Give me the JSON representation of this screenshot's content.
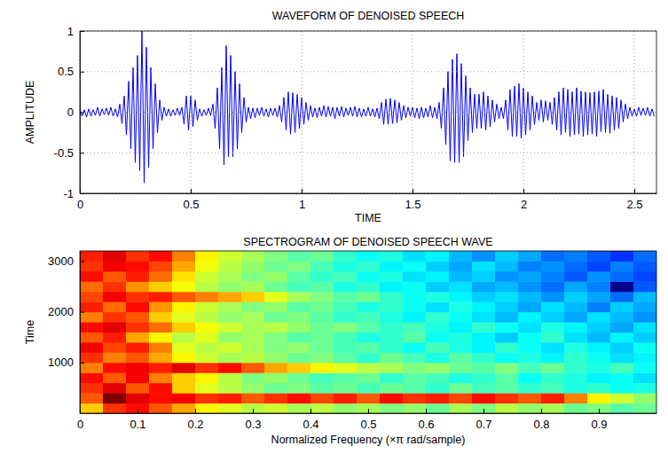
{
  "chart_data": [
    {
      "type": "line",
      "title": "WAVEFORM OF DENOISED SPEECH",
      "x_label": "TIME",
      "y_label": "AMPLITUDE",
      "x": [
        0,
        0.01,
        0.02,
        0.03,
        0.04,
        0.05,
        0.06,
        0.07,
        0.08,
        0.09,
        0.1,
        0.11,
        0.12,
        0.13,
        0.14,
        0.15,
        0.16,
        0.17,
        0.18,
        0.19,
        0.2,
        0.21,
        0.22,
        0.23,
        0.24,
        0.25,
        0.26,
        0.27,
        0.28,
        0.29,
        0.3,
        0.31,
        0.32,
        0.33,
        0.34,
        0.35,
        0.36,
        0.37,
        0.38,
        0.39,
        0.4,
        0.41,
        0.42,
        0.43,
        0.44,
        0.45,
        0.46,
        0.47,
        0.48,
        0.49,
        0.5,
        0.51,
        0.52,
        0.53,
        0.54,
        0.55,
        0.56,
        0.57,
        0.58,
        0.59,
        0.6,
        0.61,
        0.62,
        0.63,
        0.64,
        0.65,
        0.66,
        0.67,
        0.68,
        0.69,
        0.7,
        0.71,
        0.72,
        0.73,
        0.74,
        0.75,
        0.76,
        0.77,
        0.78,
        0.79,
        0.8,
        0.81,
        0.82,
        0.83,
        0.84,
        0.85,
        0.86,
        0.87,
        0.88,
        0.89,
        0.9,
        0.91,
        0.92,
        0.93,
        0.94,
        0.95,
        0.96,
        0.97,
        0.98,
        0.99,
        1,
        1.01,
        1.02,
        1.03,
        1.04,
        1.05,
        1.06,
        1.07,
        1.08,
        1.09,
        1.1,
        1.11,
        1.12,
        1.13,
        1.14,
        1.15,
        1.16,
        1.17,
        1.18,
        1.19,
        1.2,
        1.21,
        1.22,
        1.23,
        1.24,
        1.25,
        1.26,
        1.27,
        1.28,
        1.29,
        1.3,
        1.31,
        1.32,
        1.33,
        1.34,
        1.35,
        1.36,
        1.37,
        1.38,
        1.39,
        1.4,
        1.41,
        1.42,
        1.43,
        1.44,
        1.45,
        1.46,
        1.47,
        1.48,
        1.49,
        1.5,
        1.51,
        1.52,
        1.53,
        1.54,
        1.55,
        1.56,
        1.57,
        1.58,
        1.59,
        1.6,
        1.61,
        1.62,
        1.63,
        1.64,
        1.65,
        1.66,
        1.67,
        1.68,
        1.69,
        1.7,
        1.71,
        1.72,
        1.73,
        1.74,
        1.75,
        1.76,
        1.77,
        1.78,
        1.79,
        1.8,
        1.81,
        1.82,
        1.83,
        1.84,
        1.85,
        1.86,
        1.87,
        1.88,
        1.89,
        1.9,
        1.91,
        1.92,
        1.93,
        1.94,
        1.95,
        1.96,
        1.97,
        1.98,
        1.99,
        2,
        2.01,
        2.02,
        2.03,
        2.04,
        2.05,
        2.06,
        2.07,
        2.08,
        2.09,
        2.1,
        2.11,
        2.12,
        2.13,
        2.14,
        2.15,
        2.16,
        2.17,
        2.18,
        2.19,
        2.2,
        2.21,
        2.22,
        2.23,
        2.24,
        2.25,
        2.26,
        2.27,
        2.28,
        2.29,
        2.3,
        2.31,
        2.32,
        2.33,
        2.34,
        2.35,
        2.36,
        2.37,
        2.38,
        2.39,
        2.4,
        2.41,
        2.42,
        2.43,
        2.44,
        2.45,
        2.46,
        2.47,
        2.48,
        2.49,
        2.5,
        2.51,
        2.52,
        2.53,
        2.54,
        2.55,
        2.56,
        2.57,
        2.58,
        2.59
      ],
      "series": [
        {
          "color": "#0000ff",
          "values": [
            0.04,
            -0.05,
            0.03,
            -0.06,
            0.04,
            -0.05,
            0.03,
            -0.04,
            0.06,
            -0.05,
            0.04,
            -0.03,
            0.05,
            -0.04,
            0.06,
            -0.05,
            0.04,
            -0.06,
            0.1,
            -0.14,
            0.2,
            -0.28,
            0.38,
            -0.45,
            0.55,
            -0.62,
            0.7,
            -0.72,
            1,
            -0.87,
            0.8,
            -0.68,
            0.55,
            -0.45,
            0.35,
            -0.25,
            0.15,
            -0.1,
            0.06,
            -0.05,
            0.04,
            -0.05,
            0.03,
            -0.04,
            0.05,
            -0.04,
            0.06,
            -0.15,
            0.2,
            -0.22,
            0.2,
            -0.18,
            0.15,
            -0.1,
            0.04,
            -0.05,
            0.03,
            -0.04,
            0.05,
            -0.04,
            0.1,
            -0.2,
            0.3,
            -0.45,
            0.55,
            -0.65,
            0.82,
            -0.55,
            0.7,
            -0.55,
            0.5,
            -0.45,
            0.35,
            -0.25,
            0.18,
            -0.12,
            0.06,
            -0.08,
            0.05,
            -0.07,
            0.05,
            -0.04,
            0.06,
            -0.05,
            0.04,
            -0.06,
            0.05,
            -0.04,
            0.05,
            -0.06,
            0.08,
            -0.12,
            0.18,
            -0.22,
            0.25,
            -0.27,
            0.24,
            -0.25,
            0.22,
            -0.2,
            0.18,
            -0.15,
            0.12,
            -0.1,
            0.08,
            -0.06,
            0.05,
            -0.07,
            0.06,
            -0.05,
            0.08,
            -0.06,
            0.07,
            -0.05,
            0.06,
            -0.08,
            0.06,
            -0.05,
            0.07,
            -0.06,
            0.05,
            -0.04,
            0.06,
            -0.05,
            0.07,
            -0.06,
            0.05,
            -0.06,
            0.04,
            -0.05,
            0.06,
            -0.05,
            0.04,
            -0.06,
            0.05,
            -0.08,
            0.12,
            -0.15,
            0.16,
            -0.15,
            0.17,
            -0.14,
            0.15,
            -0.13,
            0.12,
            -0.1,
            0.08,
            -0.07,
            0.06,
            -0.05,
            0.06,
            -0.07,
            0.05,
            -0.08,
            0.06,
            -0.07,
            0.05,
            -0.06,
            0.08,
            -0.07,
            0.06,
            -0.08,
            0.12,
            -0.2,
            0.3,
            -0.4,
            0.5,
            -0.6,
            0.65,
            -0.62,
            0.72,
            -0.62,
            0.6,
            -0.55,
            0.45,
            -0.35,
            0.3,
            -0.25,
            0.22,
            -0.2,
            0.22,
            -0.2,
            0.25,
            -0.22,
            0.2,
            -0.18,
            0.15,
            -0.12,
            0.1,
            -0.08,
            0.06,
            -0.08,
            0.15,
            -0.22,
            0.28,
            -0.3,
            0.32,
            -0.3,
            0.35,
            -0.32,
            0.3,
            -0.28,
            0.25,
            -0.22,
            0.2,
            -0.15,
            0.12,
            -0.1,
            0.15,
            -0.12,
            0.14,
            -0.1,
            0.12,
            -0.15,
            0.18,
            -0.22,
            0.25,
            -0.28,
            0.3,
            -0.25,
            0.28,
            -0.3,
            0.25,
            -0.28,
            0.3,
            -0.27,
            0.26,
            -0.3,
            0.25,
            -0.28,
            0.24,
            -0.27,
            0.25,
            -0.3,
            0.26,
            -0.24,
            0.28,
            -0.25,
            0.22,
            -0.26,
            0.2,
            -0.22,
            0.18,
            -0.2,
            0.15,
            -0.12,
            0.1,
            -0.08,
            0.06,
            -0.05,
            0.04,
            -0.05,
            0.06,
            -0.04,
            0.05,
            -0.04,
            0.06,
            -0.05,
            0.04,
            -0.05
          ]
        }
      ],
      "xlim": [
        0,
        2.6
      ],
      "xticks": [
        0,
        0.5,
        1,
        1.5,
        2,
        2.5
      ],
      "ylim": [
        -1,
        1
      ],
      "yticks": [
        -1,
        -0.5,
        0,
        0.5,
        1
      ],
      "grid": true
    },
    {
      "type": "heatmap",
      "title": "SPECTROGRAM OF DENOISED SPEECH WAVE",
      "x_label": "Normalized Frequency  (×π rad/sample)",
      "y_label": "Time",
      "x_bins": [
        0,
        0.04,
        0.08,
        0.12,
        0.16,
        0.2,
        0.24,
        0.28,
        0.32,
        0.36,
        0.4,
        0.44,
        0.48,
        0.52,
        0.56,
        0.6,
        0.64,
        0.68,
        0.72,
        0.76,
        0.8,
        0.84,
        0.88,
        0.92,
        0.96,
        1
      ],
      "y_bins": [
        0,
        200,
        400,
        600,
        800,
        1000,
        1200,
        1400,
        1600,
        1800,
        2000,
        2200,
        2400,
        2600,
        2800,
        3000,
        3200
      ],
      "cells": [
        [
          -20,
          -12,
          -10,
          -14,
          -18,
          -22,
          -24,
          -26,
          -25,
          -27,
          -26,
          -28,
          -27,
          -29,
          -28,
          -30,
          -27,
          -29,
          -26,
          -28,
          -27,
          -30,
          -29,
          -31,
          -30
        ],
        [
          -14,
          -3,
          -8,
          -10,
          -9,
          -12,
          -11,
          -14,
          -12,
          -10,
          -13,
          -11,
          -14,
          -10,
          -12,
          -11,
          -13,
          -10,
          -12,
          -14,
          -11,
          -16,
          -22,
          -25,
          -28
        ],
        [
          -12,
          -8,
          -14,
          -10,
          -20,
          -24,
          -26,
          -28,
          -30,
          -29,
          -31,
          -30,
          -32,
          -30,
          -31,
          -33,
          -30,
          -32,
          -31,
          -33,
          -32,
          -34,
          -33,
          -35,
          -34
        ],
        [
          -10,
          -14,
          -9,
          -16,
          -20,
          -22,
          -26,
          -29,
          -28,
          -30,
          -32,
          -31,
          -30,
          -33,
          -31,
          -32,
          -34,
          -33,
          -31,
          -35,
          -33,
          -34,
          -36,
          -35,
          -37
        ],
        [
          -16,
          -10,
          -9,
          -11,
          -8,
          -12,
          -10,
          -14,
          -18,
          -20,
          -22,
          -24,
          -26,
          -27,
          -29,
          -28,
          -30,
          -31,
          -29,
          -32,
          -30,
          -33,
          -34,
          -32,
          -35
        ],
        [
          -12,
          -16,
          -14,
          -18,
          -22,
          -25,
          -27,
          -26,
          -28,
          -30,
          -29,
          -31,
          -33,
          -30,
          -32,
          -34,
          -31,
          -33,
          -35,
          -34,
          -36,
          -33,
          -35,
          -37,
          -36
        ],
        [
          -9,
          -13,
          -11,
          -16,
          -24,
          -26,
          -25,
          -27,
          -29,
          -28,
          -30,
          -32,
          -31,
          -33,
          -35,
          -32,
          -34,
          -36,
          -33,
          -35,
          -37,
          -34,
          -36,
          -38,
          -35
        ],
        [
          -14,
          -11,
          -18,
          -22,
          -26,
          -24,
          -28,
          -27,
          -29,
          -31,
          -30,
          -32,
          -34,
          -33,
          -31,
          -35,
          -34,
          -36,
          -38,
          -35,
          -33,
          -37,
          -39,
          -36,
          -38
        ],
        [
          -10,
          -8,
          -12,
          -15,
          -20,
          -23,
          -25,
          -27,
          -26,
          -28,
          -30,
          -29,
          -31,
          -33,
          -32,
          -34,
          -36,
          -33,
          -35,
          -37,
          -34,
          -36,
          -38,
          -40,
          -37
        ],
        [
          -16,
          -12,
          -14,
          -20,
          -24,
          -26,
          -28,
          -27,
          -30,
          -29,
          -31,
          -33,
          -32,
          -34,
          -36,
          -33,
          -35,
          -37,
          -39,
          -36,
          -38,
          -40,
          -37,
          -39,
          -41
        ],
        [
          -11,
          -15,
          -10,
          -17,
          -22,
          -25,
          -27,
          -29,
          -28,
          -31,
          -30,
          -32,
          -34,
          -33,
          -35,
          -37,
          -34,
          -36,
          -38,
          -40,
          -37,
          -39,
          -42,
          -38,
          -40
        ],
        [
          -13,
          -9,
          -12,
          -11,
          -14,
          -16,
          -18,
          -20,
          -24,
          -27,
          -29,
          -31,
          -30,
          -33,
          -35,
          -34,
          -36,
          -38,
          -37,
          -39,
          -41,
          -38,
          -40,
          -43,
          -39
        ],
        [
          -15,
          -12,
          -17,
          -20,
          -23,
          -26,
          -28,
          -27,
          -30,
          -32,
          -31,
          -34,
          -33,
          -36,
          -35,
          -38,
          -37,
          -40,
          -39,
          -41,
          -43,
          -40,
          -42,
          -55,
          -44
        ],
        [
          -10,
          -14,
          -11,
          -15,
          -21,
          -25,
          -27,
          -29,
          -28,
          -31,
          -33,
          -32,
          -35,
          -34,
          -37,
          -36,
          -39,
          -38,
          -41,
          -40,
          -42,
          -44,
          -41,
          -43,
          -45
        ],
        [
          -12,
          -9,
          -10,
          -13,
          -18,
          -23,
          -26,
          -28,
          -30,
          -29,
          -32,
          -34,
          -33,
          -36,
          -35,
          -38,
          -40,
          -37,
          -39,
          -42,
          -41,
          -43,
          -45,
          -42,
          -44
        ],
        [
          -11,
          -8,
          -12,
          -10,
          -16,
          -22,
          -25,
          -27,
          -29,
          -31,
          -30,
          -33,
          -35,
          -34,
          -37,
          -36,
          -39,
          -41,
          -38,
          -40,
          -43,
          -42,
          -44,
          -46,
          -43
        ]
      ],
      "xlim": [
        0,
        1
      ],
      "xticks": [
        0,
        0.1,
        0.2,
        0.3,
        0.4,
        0.5,
        0.6,
        0.7,
        0.8,
        0.9
      ],
      "ylim": [
        0,
        3200
      ],
      "yticks": [
        1000,
        2000,
        3000
      ],
      "grid": false
    }
  ]
}
